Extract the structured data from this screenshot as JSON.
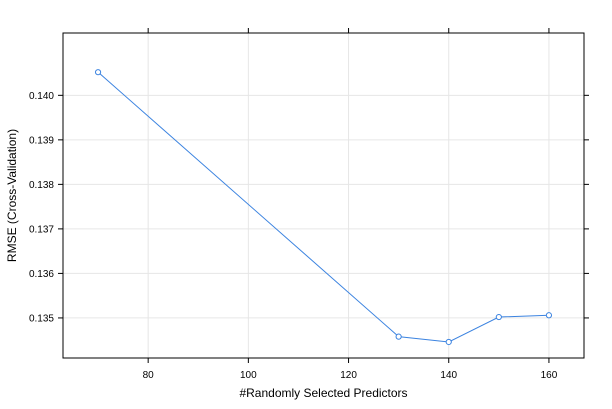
{
  "chart_data": {
    "type": "line",
    "title": "",
    "xlabel": "#Randomly Selected Predictors",
    "ylabel": "RMSE (Cross-Validation)",
    "xlim": [
      63,
      167
    ],
    "ylim": [
      0.1341,
      0.1414
    ],
    "x_ticks": [
      80,
      100,
      120,
      140,
      160
    ],
    "y_ticks": [
      0.135,
      0.136,
      0.137,
      0.138,
      0.139,
      0.14
    ],
    "grid": true,
    "legend": "none",
    "series": [
      {
        "color": "#3b83e0",
        "x": [
          70,
          130,
          140,
          150,
          160
        ],
        "y": [
          0.14052,
          0.13458,
          0.13446,
          0.13502,
          0.13506
        ]
      }
    ]
  }
}
